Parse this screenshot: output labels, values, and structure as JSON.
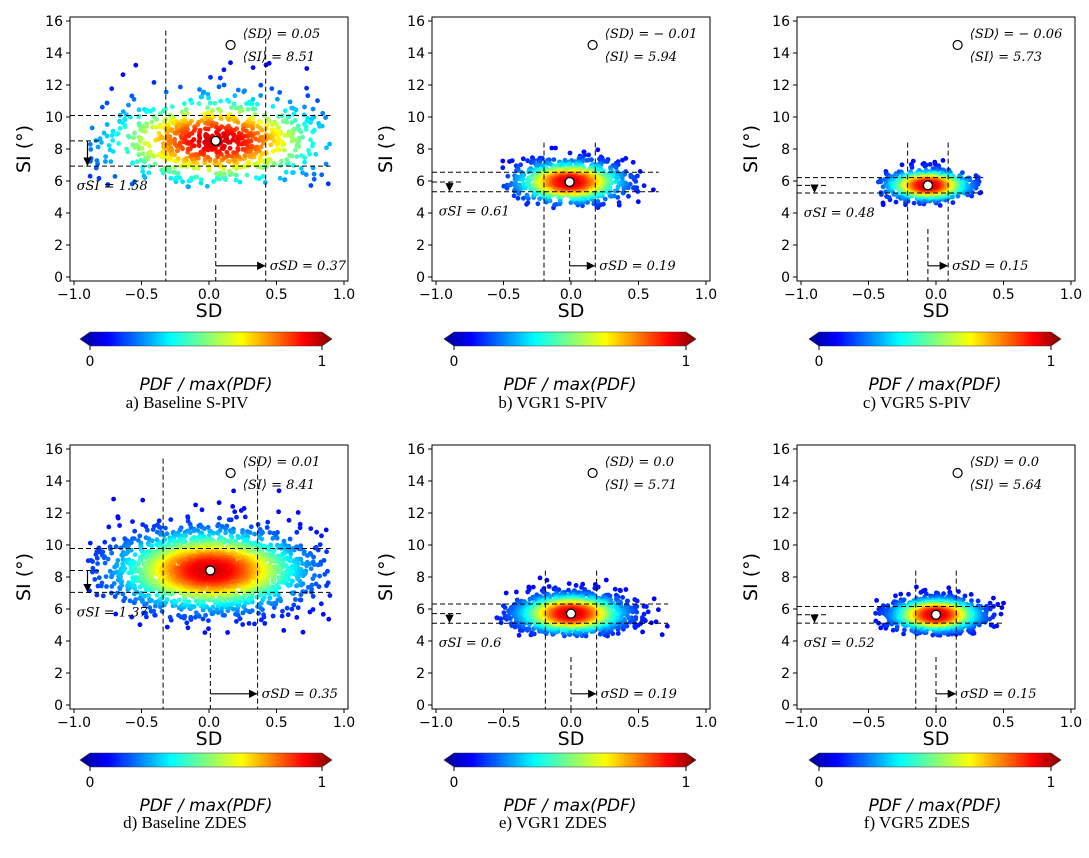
{
  "chart_data": [
    {
      "type": "scatter",
      "caption": "a) Baseline S-PIV",
      "xlabel": "SD",
      "ylabel": "SI (°)",
      "xlim": [
        -1.0,
        1.0
      ],
      "ylim": [
        0,
        16
      ],
      "xticks": [
        "−1.0",
        "−0.5",
        "0.0",
        "0.5",
        "1.0"
      ],
      "yticks": [
        "0",
        "2",
        "4",
        "6",
        "8",
        "10",
        "12",
        "14",
        "16"
      ],
      "mean": {
        "x": 0.05,
        "y": 8.51
      },
      "mean_label_sd": "⟨SD⟩ = 0.05",
      "mean_label_si": "⟨SI⟩ = 8.51",
      "sigma_si": 1.58,
      "sigma_si_label": "σSI = 1.58",
      "sigma_sd": 0.37,
      "sigma_sd_label": "σSD = 0.37",
      "cloud": {
        "sd_std": 0.5,
        "si_std": 1.7,
        "sd_range": [
          -0.9,
          0.9
        ],
        "si_range": [
          5.6,
          13.5
        ],
        "n": 900
      },
      "colorbar": {
        "label": "PDF / max(PDF)",
        "ticks": [
          "0",
          "1"
        ],
        "range": [
          0,
          1
        ]
      }
    },
    {
      "type": "scatter",
      "caption": "b) VGR1 S-PIV",
      "xlabel": "SD",
      "ylabel": "SI (°)",
      "xlim": [
        -1.0,
        1.0
      ],
      "ylim": [
        0,
        16
      ],
      "xticks": [
        "−1.0",
        "−0.5",
        "0.0",
        "0.5",
        "1.0"
      ],
      "yticks": [
        "0",
        "2",
        "4",
        "6",
        "8",
        "10",
        "12",
        "14",
        "16"
      ],
      "mean": {
        "x": -0.01,
        "y": 5.94
      },
      "mean_label_sd": "⟨SD⟩ = − 0.01",
      "mean_label_si": "⟨SI⟩ = 5.94",
      "sigma_si": 0.61,
      "sigma_si_label": "σSI = 0.61",
      "sigma_sd": 0.19,
      "sigma_sd_label": "σSD = 0.19",
      "cloud": {
        "sd_std": 0.22,
        "si_std": 0.7,
        "sd_range": [
          -0.6,
          0.65
        ],
        "si_range": [
          4.3,
          8.3
        ],
        "n": 1100
      },
      "colorbar": {
        "label": "PDF / max(PDF)",
        "ticks": [
          "0",
          "1"
        ],
        "range": [
          0,
          1
        ]
      }
    },
    {
      "type": "scatter",
      "caption": "c) VGR5 S-PIV",
      "xlabel": "SD",
      "ylabel": "SI (°)",
      "xlim": [
        -1.0,
        1.0
      ],
      "ylim": [
        0,
        16
      ],
      "xticks": [
        "−1.0",
        "−0.5",
        "0.0",
        "0.5",
        "1.0"
      ],
      "yticks": [
        "0",
        "2",
        "4",
        "6",
        "8",
        "10",
        "12",
        "14",
        "16"
      ],
      "mean": {
        "x": -0.06,
        "y": 5.73
      },
      "mean_label_sd": "⟨SD⟩ = − 0.06",
      "mean_label_si": "⟨SI⟩ = 5.73",
      "sigma_si": 0.48,
      "sigma_si_label": "σSI = 0.48",
      "sigma_sd": 0.15,
      "sigma_sd_label": "σSD = 0.15",
      "cloud": {
        "sd_std": 0.17,
        "si_std": 0.5,
        "sd_range": [
          -0.45,
          0.35
        ],
        "si_range": [
          4.4,
          7.3
        ],
        "n": 1000
      },
      "colorbar": {
        "label": "PDF / max(PDF)",
        "ticks": [
          "0",
          "1"
        ],
        "range": [
          0,
          1
        ]
      }
    },
    {
      "type": "scatter",
      "caption": "d) Baseline ZDES",
      "xlabel": "SD",
      "ylabel": "SI (°)",
      "xlim": [
        -1.0,
        1.0
      ],
      "ylim": [
        0,
        16
      ],
      "xticks": [
        "−1.0",
        "−0.5",
        "0.0",
        "0.5",
        "1.0"
      ],
      "yticks": [
        "0",
        "2",
        "4",
        "6",
        "8",
        "10",
        "12",
        "14",
        "16"
      ],
      "mean": {
        "x": 0.01,
        "y": 8.41
      },
      "mean_label_sd": "⟨SD⟩ = 0.01",
      "mean_label_si": "⟨SI⟩ = 8.41",
      "sigma_si": 1.37,
      "sigma_si_label": "σSI = 1.37",
      "sigma_sd": 0.35,
      "sigma_sd_label": "σSD = 0.35",
      "cloud": {
        "sd_std": 0.4,
        "si_std": 1.4,
        "sd_range": [
          -0.9,
          0.9
        ],
        "si_range": [
          4.4,
          14.8
        ],
        "n": 2600
      },
      "colorbar": {
        "label": "PDF / max(PDF)",
        "ticks": [
          "0",
          "1"
        ],
        "range": [
          0,
          1
        ]
      }
    },
    {
      "type": "scatter",
      "caption": "e) VGR1 ZDES",
      "xlabel": "SD",
      "ylabel": "SI (°)",
      "xlim": [
        -1.0,
        1.0
      ],
      "ylim": [
        0,
        16
      ],
      "xticks": [
        "−1.0",
        "−0.5",
        "0.0",
        "0.5",
        "1.0"
      ],
      "yticks": [
        "0",
        "2",
        "4",
        "6",
        "8",
        "10",
        "12",
        "14",
        "16"
      ],
      "mean": {
        "x": 0.0,
        "y": 5.71
      },
      "mean_label_sd": "⟨SD⟩ = 0.0",
      "mean_label_si": "⟨SI⟩ = 5.71",
      "sigma_si": 0.6,
      "sigma_si_label": "σSI = 0.6",
      "sigma_sd": 0.19,
      "sigma_sd_label": "σSD = 0.19",
      "cloud": {
        "sd_std": 0.22,
        "si_std": 0.65,
        "sd_range": [
          -0.55,
          0.72
        ],
        "si_range": [
          4.3,
          8.1
        ],
        "n": 2200
      },
      "colorbar": {
        "label": "PDF / max(PDF)",
        "ticks": [
          "0",
          "1"
        ],
        "range": [
          0,
          1
        ]
      }
    },
    {
      "type": "scatter",
      "caption": "f) VGR5 ZDES",
      "xlabel": "SD",
      "ylabel": "SI (°)",
      "xlim": [
        -1.0,
        1.0
      ],
      "ylim": [
        0,
        16
      ],
      "xticks": [
        "−1.0",
        "−0.5",
        "0.0",
        "0.5",
        "1.0"
      ],
      "yticks": [
        "0",
        "2",
        "4",
        "6",
        "8",
        "10",
        "12",
        "14",
        "16"
      ],
      "mean": {
        "x": 0.0,
        "y": 5.64
      },
      "mean_label_sd": "⟨SD⟩ = 0.0",
      "mean_label_si": "⟨SI⟩ = 5.64",
      "sigma_si": 0.52,
      "sigma_si_label": "σSI = 0.52",
      "sigma_sd": 0.15,
      "sigma_sd_label": "σSD = 0.15",
      "cloud": {
        "sd_std": 0.18,
        "si_std": 0.55,
        "sd_range": [
          -0.45,
          0.5
        ],
        "si_range": [
          4.3,
          7.5
        ],
        "n": 1900
      },
      "colorbar": {
        "label": "PDF / max(PDF)",
        "ticks": [
          "0",
          "1"
        ],
        "range": [
          0,
          1
        ]
      }
    }
  ]
}
